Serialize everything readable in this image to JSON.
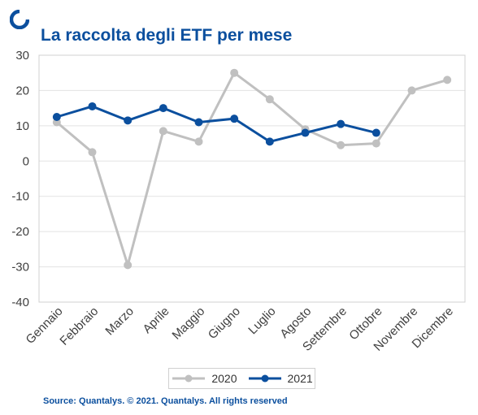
{
  "chart_data": {
    "type": "line",
    "title": "La raccolta degli ETF per mese",
    "xlabel": "",
    "ylabel": "",
    "ylim": [
      -40,
      30
    ],
    "yticks": [
      30,
      20,
      10,
      0,
      -10,
      -20,
      -30,
      -40
    ],
    "grid": true,
    "legend_position": "bottom",
    "categories": [
      "Gennaio",
      "Febbraio",
      "Marzo",
      "Aprile",
      "Maggio",
      "Giugno",
      "Luglio",
      "Agosto",
      "Settembre",
      "Ottobre",
      "Novembre",
      "Dicembre"
    ],
    "series": [
      {
        "name": "2020",
        "color": "#c0c0c0",
        "values": [
          11,
          2.5,
          -29.5,
          8.5,
          5.5,
          25,
          17.5,
          9,
          4.5,
          5,
          20,
          23
        ]
      },
      {
        "name": "2021",
        "color": "#0b4f9e",
        "values": [
          12.5,
          15.5,
          11.5,
          15,
          11,
          12,
          5.5,
          8,
          10.5,
          8,
          null,
          null
        ]
      }
    ]
  },
  "source": "Source: Quantalys. © 2021. Quantalys. All rights reserved"
}
